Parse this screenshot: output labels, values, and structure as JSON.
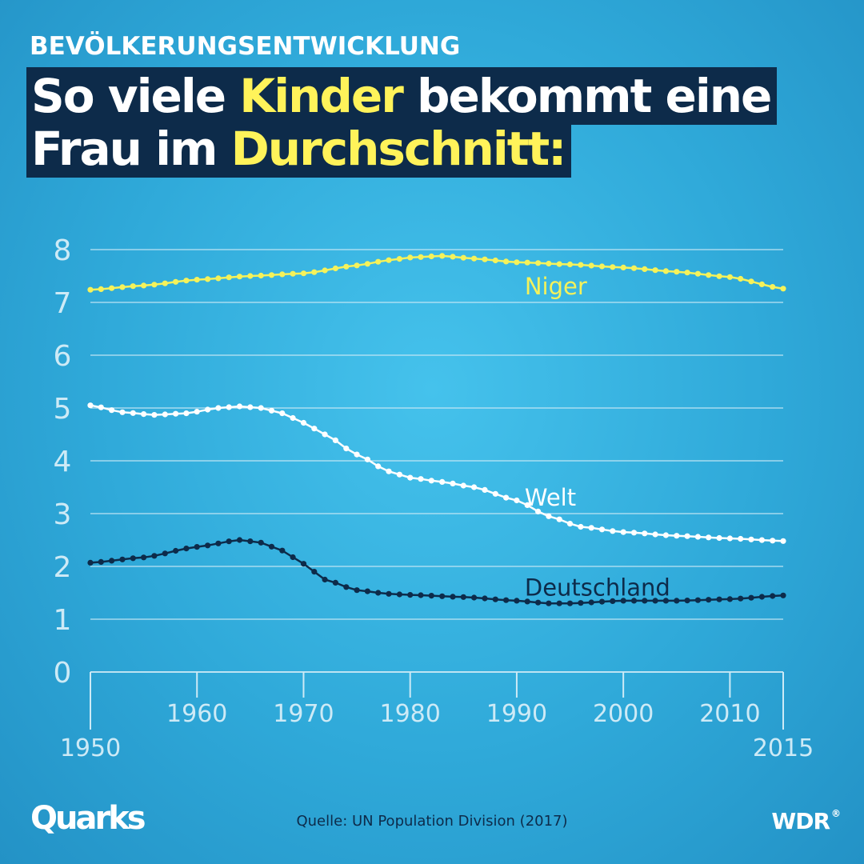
{
  "header": {
    "kicker": "BEVÖLKERUNGSENTWICKLUNG",
    "line1": {
      "part1": "So viele ",
      "highlight": "Kinder",
      "part2": " bekommt eine"
    },
    "line2": {
      "part1": "Frau im ",
      "highlight": "Durchschnitt:"
    }
  },
  "colors": {
    "highlight": "#fff35a",
    "navy": "#0d2b4a",
    "niger": "#f5f25a",
    "welt": "#ffffff",
    "deutschland": "#0d2b4a",
    "grid": "#cdeaf6"
  },
  "chart_data": {
    "type": "line",
    "xlim": [
      1950,
      2015
    ],
    "ylim": [
      0,
      8
    ],
    "yticks": [
      "0",
      "1",
      "2",
      "3",
      "4",
      "5",
      "6",
      "7",
      "8"
    ],
    "xticks_inner": [
      "1960",
      "1970",
      "1980",
      "1990",
      "2000",
      "2010"
    ],
    "xticks_outer": [
      "1950",
      "2015"
    ],
    "grid": true,
    "series": [
      {
        "name": "Niger",
        "colorKey": "niger",
        "labelYear": 1996,
        "labelValue": 7.3,
        "points": [
          [
            1950,
            7.24
          ],
          [
            1955,
            7.32
          ],
          [
            1960,
            7.43
          ],
          [
            1965,
            7.5
          ],
          [
            1970,
            7.55
          ],
          [
            1975,
            7.7
          ],
          [
            1978,
            7.8
          ],
          [
            1980,
            7.85
          ],
          [
            1983,
            7.88
          ],
          [
            1986,
            7.83
          ],
          [
            1990,
            7.76
          ],
          [
            1995,
            7.72
          ],
          [
            2000,
            7.66
          ],
          [
            2005,
            7.58
          ],
          [
            2010,
            7.48
          ],
          [
            2015,
            7.26
          ]
        ]
      },
      {
        "name": "Welt",
        "colorKey": "welt",
        "labelYear": 1996,
        "labelValue": 3.3,
        "points": [
          [
            1950,
            5.05
          ],
          [
            1953,
            4.92
          ],
          [
            1956,
            4.87
          ],
          [
            1959,
            4.9
          ],
          [
            1962,
            5.0
          ],
          [
            1964,
            5.03
          ],
          [
            1966,
            5.0
          ],
          [
            1968,
            4.9
          ],
          [
            1970,
            4.72
          ],
          [
            1972,
            4.5
          ],
          [
            1975,
            4.12
          ],
          [
            1978,
            3.8
          ],
          [
            1980,
            3.68
          ],
          [
            1983,
            3.6
          ],
          [
            1986,
            3.5
          ],
          [
            1990,
            3.25
          ],
          [
            1993,
            2.95
          ],
          [
            1996,
            2.75
          ],
          [
            2000,
            2.65
          ],
          [
            2005,
            2.58
          ],
          [
            2010,
            2.53
          ],
          [
            2015,
            2.48
          ]
        ]
      },
      {
        "name": "Deutschland",
        "colorKey": "deutschland",
        "labelYear": 1996,
        "labelValue": 1.6,
        "points": [
          [
            1950,
            2.07
          ],
          [
            1955,
            2.17
          ],
          [
            1960,
            2.37
          ],
          [
            1964,
            2.5
          ],
          [
            1966,
            2.45
          ],
          [
            1968,
            2.3
          ],
          [
            1970,
            2.05
          ],
          [
            1972,
            1.75
          ],
          [
            1975,
            1.55
          ],
          [
            1978,
            1.48
          ],
          [
            1980,
            1.46
          ],
          [
            1985,
            1.42
          ],
          [
            1990,
            1.35
          ],
          [
            1993,
            1.3
          ],
          [
            1995,
            1.3
          ],
          [
            2000,
            1.35
          ],
          [
            2005,
            1.35
          ],
          [
            2010,
            1.38
          ],
          [
            2015,
            1.45
          ]
        ]
      }
    ]
  },
  "footer": {
    "logo": "Quarks",
    "source": "Quelle: UN Population Division (2017)",
    "wdr": "WDR"
  }
}
